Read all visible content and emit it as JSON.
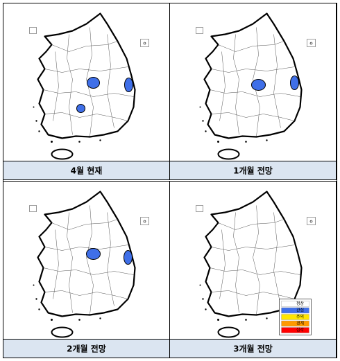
{
  "panels": [
    {
      "caption": "4월 현재"
    },
    {
      "caption": "1개월 전망"
    },
    {
      "caption": "2개월 전망"
    },
    {
      "caption": "3개월 전망"
    }
  ],
  "legend": {
    "items": [
      "정상",
      "관심",
      "주의",
      "경계",
      "심각"
    ]
  }
}
